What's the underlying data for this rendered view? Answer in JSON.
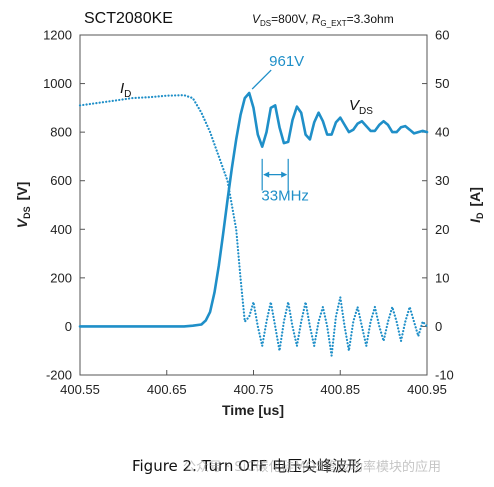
{
  "chart_data": {
    "type": "line",
    "title": "SCT2080KE",
    "conditions": "V_DS=800V, R_G_EXT=3.3ohm",
    "conditions_parts": {
      "v_label": "V",
      "v_sub": "DS",
      "v_value": "=800V, ",
      "r_label": "R",
      "r_sub": "G_EXT",
      "r_value": "=3.3ohm"
    },
    "xlabel": "Time [us]",
    "ylabel_left": {
      "main": "V",
      "sub": "DS",
      "unit": "[V]"
    },
    "ylabel_right": {
      "main": "I",
      "sub": "D",
      "unit": "[A]"
    },
    "xlim": [
      400.55,
      400.95
    ],
    "ylim_left": [
      -200,
      1200
    ],
    "ylim_right": [
      -10,
      60
    ],
    "xticks": [
      "400.55",
      "400.65",
      "400.75",
      "400.85",
      "400.95"
    ],
    "yticks_left": [
      "-200",
      "0",
      "200",
      "400",
      "600",
      "800",
      "1000",
      "1200"
    ],
    "yticks_right": [
      "-10",
      "0",
      "10",
      "20",
      "30",
      "40",
      "50",
      "60"
    ],
    "grid": false,
    "color": "#1f8fc8",
    "series": [
      {
        "name": "VDS",
        "label_main": "V",
        "label_sub": "DS",
        "axis": "left",
        "style": "solid",
        "x": [
          400.55,
          400.6,
          400.65,
          400.67,
          400.68,
          400.69,
          400.695,
          400.7,
          400.705,
          400.71,
          400.715,
          400.72,
          400.725,
          400.73,
          400.735,
          400.74,
          400.745,
          400.75,
          400.755,
          400.76,
          400.765,
          400.77,
          400.775,
          400.78,
          400.785,
          400.79,
          400.795,
          400.8,
          400.805,
          400.81,
          400.815,
          400.82,
          400.825,
          400.83,
          400.835,
          400.84,
          400.845,
          400.85,
          400.855,
          400.86,
          400.865,
          400.87,
          400.875,
          400.88,
          400.885,
          400.89,
          400.895,
          400.9,
          400.905,
          400.91,
          400.915,
          400.92,
          400.925,
          400.93,
          400.935,
          400.94,
          400.945,
          400.95
        ],
        "y": [
          0,
          0,
          0,
          0,
          3,
          8,
          25,
          60,
          140,
          250,
          380,
          520,
          650,
          770,
          870,
          940,
          961,
          900,
          790,
          740,
          800,
          900,
          910,
          820,
          755,
          760,
          850,
          905,
          880,
          790,
          770,
          840,
          880,
          845,
          790,
          790,
          840,
          860,
          830,
          800,
          810,
          835,
          845,
          825,
          805,
          805,
          830,
          845,
          830,
          800,
          800,
          820,
          825,
          810,
          795,
          800,
          805,
          800
        ]
      },
      {
        "name": "ID",
        "label_main": "I",
        "label_sub": "D",
        "axis": "right",
        "style": "dotted",
        "x": [
          400.55,
          400.57,
          400.59,
          400.61,
          400.63,
          400.65,
          400.67,
          400.68,
          400.69,
          400.7,
          400.71,
          400.72,
          400.73,
          400.735,
          400.74,
          400.745,
          400.75,
          400.755,
          400.76,
          400.765,
          400.77,
          400.775,
          400.78,
          400.785,
          400.79,
          400.795,
          400.8,
          400.805,
          400.81,
          400.815,
          400.82,
          400.825,
          400.83,
          400.835,
          400.84,
          400.845,
          400.85,
          400.855,
          400.86,
          400.865,
          400.87,
          400.875,
          400.88,
          400.885,
          400.89,
          400.895,
          400.9,
          400.905,
          400.91,
          400.915,
          400.92,
          400.925,
          400.93,
          400.935,
          400.94,
          400.945,
          400.95
        ],
        "y": [
          45.5,
          46,
          46.5,
          47,
          47.2,
          47.5,
          47.6,
          47,
          44,
          40,
          35,
          30,
          20,
          10,
          1,
          2,
          5,
          0,
          -4,
          1,
          5,
          0,
          -5,
          1,
          5,
          0,
          -4,
          1,
          5,
          0,
          -4,
          1,
          4,
          0,
          -6,
          2,
          6,
          0,
          -5,
          1,
          4,
          0,
          -4,
          1,
          4,
          0,
          -3,
          1,
          4,
          1,
          -3,
          1,
          4,
          1,
          -2,
          1,
          0
        ]
      }
    ],
    "annotations": [
      {
        "id": "peak",
        "text": "961V"
      },
      {
        "id": "freq",
        "text": "33MHz"
      }
    ]
  },
  "caption": "Figure 2. Turn OFF 电压尖峰波形",
  "watermark": "公众号 · SiC碳化硅MOS管及功率模块的应用"
}
